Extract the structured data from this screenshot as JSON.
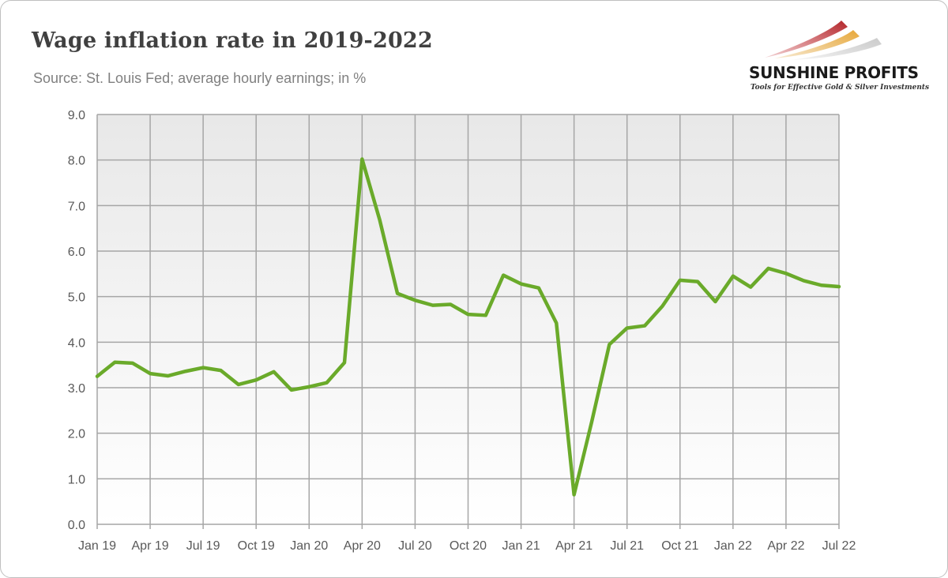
{
  "title": "Wage inflation rate in 2019-2022",
  "subtitle": "Source: St. Louis Fed; average hourly earnings; in %",
  "logo": {
    "name": "SUNSHINE PROFITS",
    "tagline": "Tools for Effective Gold & Silver Investments"
  },
  "colors": {
    "line": "#6aaa2a",
    "grid": "#a6a6a6",
    "plot_bg_top": "#e8e8e8",
    "plot_bg_bottom": "#ffffff"
  },
  "chart_data": {
    "type": "line",
    "title": "Wage inflation rate in 2019-2022",
    "subtitle": "Source: St. Louis Fed; average hourly earnings; in %",
    "xlabel": "",
    "ylabel": "",
    "ylim": [
      0,
      9
    ],
    "yticks": [
      "0.0",
      "1.0",
      "2.0",
      "3.0",
      "4.0",
      "5.0",
      "6.0",
      "7.0",
      "8.0",
      "9.0"
    ],
    "xtick_labels": [
      "Jan 19",
      "Apr 19",
      "Jul 19",
      "Oct 19",
      "Jan 20",
      "Apr 20",
      "Jul 20",
      "Oct 20",
      "Jan 21",
      "Apr 21",
      "Jul 21",
      "Oct 21",
      "Jan 22",
      "Apr 22",
      "Jul 22"
    ],
    "grid": true,
    "legend": "none",
    "x": [
      "Jan 19",
      "Feb 19",
      "Mar 19",
      "Apr 19",
      "May 19",
      "Jun 19",
      "Jul 19",
      "Aug 19",
      "Sep 19",
      "Oct 19",
      "Nov 19",
      "Dec 19",
      "Jan 20",
      "Feb 20",
      "Mar 20",
      "Apr 20",
      "May 20",
      "Jun 20",
      "Jul 20",
      "Aug 20",
      "Sep 20",
      "Oct 20",
      "Nov 20",
      "Dec 20",
      "Jan 21",
      "Feb 21",
      "Mar 21",
      "Apr 21",
      "May 21",
      "Jun 21",
      "Jul 21",
      "Aug 21",
      "Sep 21",
      "Oct 21",
      "Nov 21",
      "Dec 21",
      "Jan 22",
      "Feb 22",
      "Mar 22",
      "Apr 22",
      "May 22",
      "Jun 22",
      "Jul 22"
    ],
    "series": [
      {
        "values": [
          3.25,
          3.56,
          3.54,
          3.31,
          3.26,
          3.36,
          3.44,
          3.38,
          3.07,
          3.17,
          3.35,
          2.95,
          3.02,
          3.11,
          3.55,
          8.02,
          6.68,
          5.07,
          4.92,
          4.81,
          4.83,
          4.61,
          4.59,
          5.47,
          5.28,
          5.19,
          4.42,
          0.65,
          2.25,
          3.95,
          4.31,
          4.36,
          4.79,
          5.36,
          5.33,
          4.89,
          5.45,
          5.21,
          5.62,
          5.51,
          5.35,
          5.25,
          5.22
        ]
      }
    ]
  }
}
